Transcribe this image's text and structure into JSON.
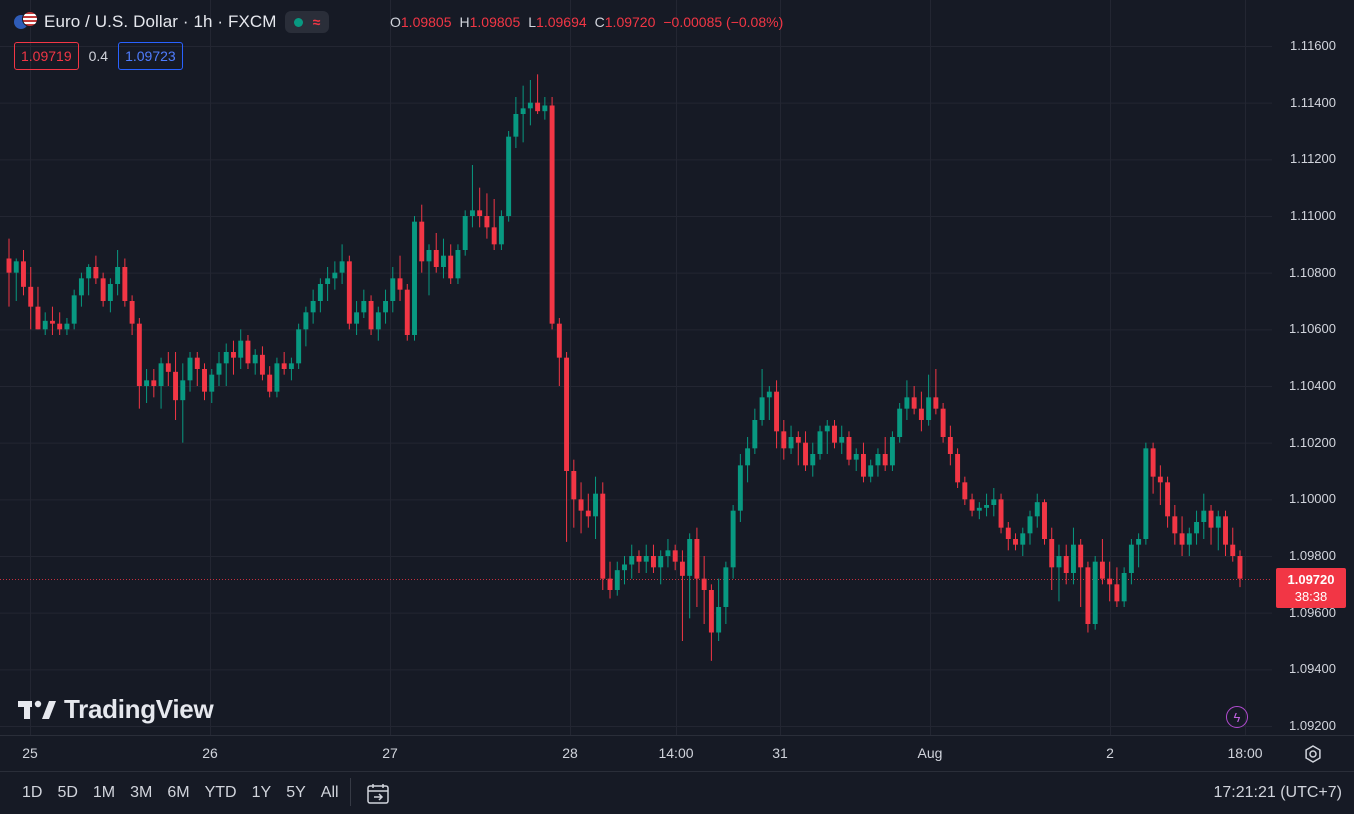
{
  "header": {
    "title": "Euro / U.S. Dollar · 1h · FXCM",
    "ohlc": [
      {
        "k": "O",
        "v": "1.09805"
      },
      {
        "k": "H",
        "v": "1.09805"
      },
      {
        "k": "L",
        "v": "1.09694"
      },
      {
        "k": "C",
        "v": "1.09720"
      },
      {
        "k": "",
        "v": "−0.00085 (−0.08%)"
      }
    ],
    "bid": "1.09719",
    "spread": "0.4",
    "ask": "1.09723",
    "status_icon": "market-open-dot",
    "wave_icon": "≈"
  },
  "current_price": {
    "price": "1.09720",
    "countdown": "38:38"
  },
  "time_ranges": [
    "1D",
    "5D",
    "1M",
    "3M",
    "6M",
    "YTD",
    "1Y",
    "5Y",
    "All"
  ],
  "clock": "17:21:21 (UTC+7)",
  "logo": "TradingView",
  "colors": {
    "up": "#089981",
    "down": "#f23645",
    "background": "#161a25",
    "grid": "#232632"
  },
  "chart_data": {
    "type": "candlestick",
    "title": "Euro / U.S. Dollar · 1h · FXCM",
    "y_ticks": [
      "1.11600",
      "1.11400",
      "1.11200",
      "1.11000",
      "1.10800",
      "1.10600",
      "1.10400",
      "1.10200",
      "1.10000",
      "1.09800",
      "1.09600",
      "1.09400",
      "1.09200"
    ],
    "x_ticks": [
      "25",
      "26",
      "27",
      "28",
      "14:00",
      "31",
      "Aug",
      "2",
      "18:00"
    ],
    "ylim": [
      1.0915,
      1.1165
    ],
    "grid": true,
    "last_close": 1.0972,
    "ohlc": [
      [
        1.1085,
        1.1092,
        1.1068,
        1.108
      ],
      [
        1.108,
        1.1085,
        1.107,
        1.1084
      ],
      [
        1.1084,
        1.1088,
        1.1072,
        1.1075
      ],
      [
        1.1075,
        1.1082,
        1.106,
        1.1068
      ],
      [
        1.1068,
        1.1075,
        1.106,
        1.106
      ],
      [
        1.106,
        1.1066,
        1.1058,
        1.1063
      ],
      [
        1.1063,
        1.1068,
        1.1058,
        1.1062
      ],
      [
        1.1062,
        1.1066,
        1.1058,
        1.106
      ],
      [
        1.106,
        1.1064,
        1.1058,
        1.1062
      ],
      [
        1.1062,
        1.1074,
        1.106,
        1.1072
      ],
      [
        1.1072,
        1.108,
        1.1068,
        1.1078
      ],
      [
        1.1078,
        1.1083,
        1.1072,
        1.1082
      ],
      [
        1.1082,
        1.1086,
        1.1076,
        1.1078
      ],
      [
        1.1078,
        1.108,
        1.1068,
        1.107
      ],
      [
        1.107,
        1.1078,
        1.1066,
        1.1076
      ],
      [
        1.1076,
        1.1088,
        1.1072,
        1.1082
      ],
      [
        1.1082,
        1.1085,
        1.1068,
        1.107
      ],
      [
        1.107,
        1.1072,
        1.1058,
        1.1062
      ],
      [
        1.1062,
        1.1064,
        1.1032,
        1.104
      ],
      [
        1.104,
        1.1046,
        1.1034,
        1.1042
      ],
      [
        1.1042,
        1.1046,
        1.1036,
        1.104
      ],
      [
        1.104,
        1.105,
        1.1032,
        1.1048
      ],
      [
        1.1048,
        1.1052,
        1.104,
        1.1045
      ],
      [
        1.1045,
        1.1052,
        1.1028,
        1.1035
      ],
      [
        1.1035,
        1.1048,
        1.102,
        1.1042
      ],
      [
        1.1042,
        1.1052,
        1.1038,
        1.105
      ],
      [
        1.105,
        1.1052,
        1.104,
        1.1046
      ],
      [
        1.1046,
        1.1048,
        1.1035,
        1.1038
      ],
      [
        1.1038,
        1.1046,
        1.1034,
        1.1044
      ],
      [
        1.1044,
        1.1052,
        1.104,
        1.1048
      ],
      [
        1.1048,
        1.1055,
        1.104,
        1.1052
      ],
      [
        1.1052,
        1.1056,
        1.1044,
        1.105
      ],
      [
        1.105,
        1.106,
        1.1046,
        1.1056
      ],
      [
        1.1056,
        1.1058,
        1.1046,
        1.1048
      ],
      [
        1.1048,
        1.1053,
        1.1044,
        1.1051
      ],
      [
        1.1051,
        1.1054,
        1.1042,
        1.1044
      ],
      [
        1.1044,
        1.1047,
        1.1036,
        1.1038
      ],
      [
        1.1038,
        1.105,
        1.1036,
        1.1048
      ],
      [
        1.1048,
        1.1052,
        1.1044,
        1.1046
      ],
      [
        1.1046,
        1.105,
        1.1042,
        1.1048
      ],
      [
        1.1048,
        1.1062,
        1.1046,
        1.106
      ],
      [
        1.106,
        1.1068,
        1.1054,
        1.1066
      ],
      [
        1.1066,
        1.1074,
        1.1062,
        1.107
      ],
      [
        1.107,
        1.1078,
        1.1066,
        1.1076
      ],
      [
        1.1076,
        1.1082,
        1.107,
        1.1078
      ],
      [
        1.1078,
        1.1084,
        1.1074,
        1.108
      ],
      [
        1.108,
        1.109,
        1.1076,
        1.1084
      ],
      [
        1.1084,
        1.1086,
        1.106,
        1.1062
      ],
      [
        1.1062,
        1.107,
        1.1058,
        1.1066
      ],
      [
        1.1066,
        1.1074,
        1.1064,
        1.107
      ],
      [
        1.107,
        1.1072,
        1.1058,
        1.106
      ],
      [
        1.106,
        1.1068,
        1.1056,
        1.1066
      ],
      [
        1.1066,
        1.1074,
        1.1062,
        1.107
      ],
      [
        1.107,
        1.1082,
        1.1066,
        1.1078
      ],
      [
        1.1078,
        1.1086,
        1.107,
        1.1074
      ],
      [
        1.1074,
        1.1076,
        1.1056,
        1.1058
      ],
      [
        1.1058,
        1.11,
        1.1056,
        1.1098
      ],
      [
        1.1098,
        1.1104,
        1.108,
        1.1084
      ],
      [
        1.1084,
        1.109,
        1.1072,
        1.1088
      ],
      [
        1.1088,
        1.1094,
        1.108,
        1.1082
      ],
      [
        1.1082,
        1.1092,
        1.1078,
        1.1086
      ],
      [
        1.1086,
        1.109,
        1.1076,
        1.1078
      ],
      [
        1.1078,
        1.109,
        1.1076,
        1.1088
      ],
      [
        1.1088,
        1.1102,
        1.1086,
        1.11
      ],
      [
        1.11,
        1.1118,
        1.1096,
        1.1102
      ],
      [
        1.1102,
        1.111,
        1.1096,
        1.11
      ],
      [
        1.11,
        1.1108,
        1.1092,
        1.1096
      ],
      [
        1.1096,
        1.1106,
        1.1088,
        1.109
      ],
      [
        1.109,
        1.1102,
        1.1088,
        1.11
      ],
      [
        1.11,
        1.113,
        1.1098,
        1.1128
      ],
      [
        1.1128,
        1.1142,
        1.1124,
        1.1136
      ],
      [
        1.1136,
        1.1146,
        1.1126,
        1.1138
      ],
      [
        1.1138,
        1.1148,
        1.1132,
        1.114
      ],
      [
        1.114,
        1.115,
        1.1136,
        1.1137
      ],
      [
        1.1137,
        1.1142,
        1.1134,
        1.1139
      ],
      [
        1.1139,
        1.1142,
        1.106,
        1.1062
      ],
      [
        1.1062,
        1.1064,
        1.104,
        1.105
      ],
      [
        1.105,
        1.1052,
        1.0985,
        1.101
      ],
      [
        1.101,
        1.1014,
        1.099,
        1.1
      ],
      [
        1.1,
        1.1006,
        1.0988,
        1.0996
      ],
      [
        1.0996,
        1.1002,
        1.099,
        1.0994
      ],
      [
        1.0994,
        1.1008,
        1.0986,
        1.1002
      ],
      [
        1.1002,
        1.1006,
        1.0968,
        1.0972
      ],
      [
        1.0972,
        1.0978,
        1.0965,
        1.0968
      ],
      [
        1.0968,
        1.0978,
        1.0966,
        1.0975
      ],
      [
        1.0975,
        1.098,
        1.097,
        1.0977
      ],
      [
        1.0977,
        1.0984,
        1.0972,
        1.098
      ],
      [
        1.098,
        1.0982,
        1.0974,
        1.0978
      ],
      [
        1.0978,
        1.0984,
        1.0974,
        1.098
      ],
      [
        1.098,
        1.0984,
        1.0974,
        1.0976
      ],
      [
        1.0976,
        1.0982,
        1.097,
        1.098
      ],
      [
        1.098,
        1.0986,
        1.0976,
        1.0982
      ],
      [
        1.0982,
        1.0984,
        1.0975,
        1.0978
      ],
      [
        1.0978,
        1.0982,
        1.095,
        1.0973
      ],
      [
        1.0973,
        1.0988,
        1.0958,
        1.0986
      ],
      [
        1.0986,
        1.099,
        1.0962,
        1.0972
      ],
      [
        1.0972,
        1.098,
        1.0956,
        1.0968
      ],
      [
        1.0968,
        1.097,
        1.0943,
        1.0953
      ],
      [
        1.0953,
        1.0972,
        1.095,
        1.0962
      ],
      [
        1.0962,
        1.0978,
        1.0956,
        1.0976
      ],
      [
        1.0976,
        1.0998,
        1.0972,
        1.0996
      ],
      [
        1.0996,
        1.1016,
        1.0992,
        1.1012
      ],
      [
        1.1012,
        1.1022,
        1.1006,
        1.1018
      ],
      [
        1.1018,
        1.1032,
        1.1016,
        1.1028
      ],
      [
        1.1028,
        1.1046,
        1.1026,
        1.1036
      ],
      [
        1.1036,
        1.104,
        1.1028,
        1.1038
      ],
      [
        1.1038,
        1.1042,
        1.1018,
        1.1024
      ],
      [
        1.1024,
        1.1028,
        1.1014,
        1.1018
      ],
      [
        1.1018,
        1.1026,
        1.1016,
        1.1022
      ],
      [
        1.1022,
        1.1024,
        1.1012,
        1.102
      ],
      [
        1.102,
        1.1024,
        1.101,
        1.1012
      ],
      [
        1.1012,
        1.102,
        1.1008,
        1.1016
      ],
      [
        1.1016,
        1.1026,
        1.1014,
        1.1024
      ],
      [
        1.1024,
        1.1028,
        1.1016,
        1.1026
      ],
      [
        1.1026,
        1.1028,
        1.1018,
        1.102
      ],
      [
        1.102,
        1.1026,
        1.1016,
        1.1022
      ],
      [
        1.1022,
        1.1024,
        1.1012,
        1.1014
      ],
      [
        1.1014,
        1.1018,
        1.101,
        1.1016
      ],
      [
        1.1016,
        1.102,
        1.1006,
        1.1008
      ],
      [
        1.1008,
        1.1014,
        1.1006,
        1.1012
      ],
      [
        1.1012,
        1.1018,
        1.1008,
        1.1016
      ],
      [
        1.1016,
        1.1022,
        1.101,
        1.1012
      ],
      [
        1.1012,
        1.1024,
        1.101,
        1.1022
      ],
      [
        1.1022,
        1.1034,
        1.102,
        1.1032
      ],
      [
        1.1032,
        1.1042,
        1.1028,
        1.1036
      ],
      [
        1.1036,
        1.104,
        1.103,
        1.1032
      ],
      [
        1.1032,
        1.1038,
        1.1024,
        1.1028
      ],
      [
        1.1028,
        1.1044,
        1.1026,
        1.1036
      ],
      [
        1.1036,
        1.1046,
        1.103,
        1.1032
      ],
      [
        1.1032,
        1.1034,
        1.102,
        1.1022
      ],
      [
        1.1022,
        1.1026,
        1.1012,
        1.1016
      ],
      [
        1.1016,
        1.1018,
        1.1004,
        1.1006
      ],
      [
        1.1006,
        1.1008,
        1.0998,
        1.1
      ],
      [
        1.1,
        1.1002,
        1.0994,
        1.0996
      ],
      [
        1.0996,
        1.0999,
        1.0993,
        1.0997
      ],
      [
        1.0997,
        1.1002,
        1.0994,
        1.0998
      ],
      [
        1.0998,
        1.1004,
        1.0994,
        1.1
      ],
      [
        1.1,
        1.1002,
        1.0988,
        1.099
      ],
      [
        1.099,
        1.0992,
        1.0982,
        1.0986
      ],
      [
        1.0986,
        1.0988,
        1.0982,
        1.0984
      ],
      [
        1.0984,
        1.099,
        1.098,
        1.0988
      ],
      [
        1.0988,
        1.0996,
        1.0984,
        1.0994
      ],
      [
        1.0994,
        1.1002,
        1.099,
        1.0999
      ],
      [
        1.0999,
        1.1,
        1.0984,
        1.0986
      ],
      [
        1.0986,
        1.099,
        1.0968,
        1.0976
      ],
      [
        1.0976,
        1.0984,
        1.0964,
        1.098
      ],
      [
        1.098,
        1.0984,
        1.097,
        1.0974
      ],
      [
        1.0974,
        1.099,
        1.097,
        1.0984
      ],
      [
        1.0984,
        1.0986,
        1.0962,
        1.0976
      ],
      [
        1.0976,
        1.0978,
        1.0953,
        1.0956
      ],
      [
        1.0956,
        1.098,
        1.0954,
        1.0978
      ],
      [
        1.0978,
        1.0986,
        1.097,
        1.0972
      ],
      [
        1.0972,
        1.0978,
        1.0964,
        1.097
      ],
      [
        1.097,
        1.0976,
        1.0962,
        1.0964
      ],
      [
        1.0964,
        1.0976,
        1.0962,
        1.0974
      ],
      [
        1.0974,
        1.0986,
        1.097,
        1.0984
      ],
      [
        1.0984,
        1.0988,
        1.0976,
        1.0986
      ],
      [
        1.0986,
        1.102,
        1.0984,
        1.1018
      ],
      [
        1.1018,
        1.102,
        1.1002,
        1.1008
      ],
      [
        1.1008,
        1.1012,
        1.0998,
        1.1006
      ],
      [
        1.1006,
        1.1008,
        1.099,
        1.0994
      ],
      [
        1.0994,
        1.0998,
        1.0984,
        1.0988
      ],
      [
        1.0988,
        1.0994,
        1.098,
        1.0984
      ],
      [
        1.0984,
        1.099,
        1.098,
        1.0988
      ],
      [
        1.0988,
        1.0996,
        1.0984,
        1.0992
      ],
      [
        1.0992,
        1.1002,
        1.0986,
        1.0996
      ],
      [
        1.0996,
        1.0998,
        1.0984,
        1.099
      ],
      [
        1.099,
        1.0996,
        1.0982,
        1.0994
      ],
      [
        1.0994,
        1.0996,
        1.098,
        1.0984
      ],
      [
        1.0984,
        1.099,
        1.0978,
        1.098
      ],
      [
        1.098,
        1.0982,
        1.0969,
        1.0972
      ]
    ]
  }
}
